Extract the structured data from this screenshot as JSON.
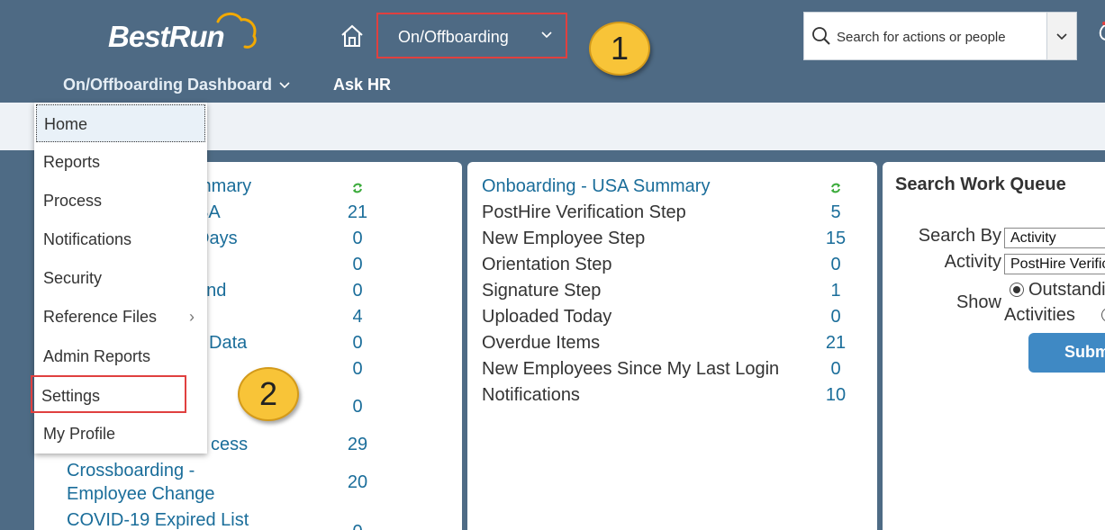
{
  "header": {
    "logo_text": "BestRun",
    "module_label": "On/Offboarding",
    "search_placeholder": "Search for actions or people",
    "nav": [
      "On/Offboarding Dashboard",
      "Ask HR"
    ],
    "accent": "#e0403f",
    "bg": "#4e6a84"
  },
  "callouts": [
    "1",
    "2"
  ],
  "menu": {
    "items": [
      "Home",
      "Reports",
      "Process",
      "Notifications",
      "Security",
      "Reference Files",
      "Admin Reports",
      "Settings",
      "My Profile"
    ],
    "active": "Home",
    "highlighted": "Settings"
  },
  "tile1": {
    "title_visible": "mmary",
    "rows": [
      {
        "label": "SA",
        "value": "21"
      },
      {
        "label": "Days",
        "value": "0"
      },
      {
        "label": "n",
        "value": "0"
      },
      {
        "label": "and",
        "value": "0"
      },
      {
        "label": "",
        "value": "4"
      },
      {
        "label": "Data",
        "value": "0"
      },
      {
        "label": "",
        "value": "0"
      },
      {
        "label": "",
        "value": "0"
      },
      {
        "label": "cess",
        "value": "29"
      },
      {
        "label": "Crossboarding -",
        "label2": "Employee Change",
        "value": "20"
      },
      {
        "label": "COVID-19 Expired List",
        "value": "0"
      }
    ]
  },
  "tile2": {
    "title": "Onboarding - USA Summary",
    "rows": [
      {
        "label": "PostHire Verification Step",
        "value": "5"
      },
      {
        "label": "New Employee Step",
        "value": "15"
      },
      {
        "label": "Orientation Step",
        "value": "0"
      },
      {
        "label": "Signature Step",
        "value": "1"
      },
      {
        "label": "Uploaded Today",
        "value": "0"
      },
      {
        "label": "Overdue Items",
        "value": "21"
      },
      {
        "label": "New Employees Since My Last Login",
        "value": "0"
      },
      {
        "label": "Notifications",
        "value": "10"
      }
    ]
  },
  "tile3": {
    "title": "Search Work Queue",
    "search_by_label": "Search By",
    "search_by_value": "Activity",
    "activity_label": "Activity",
    "activity_value": "PostHire Verification",
    "show_label": "Show",
    "radio1": "Outstanding",
    "radio1_line2": "Activities",
    "submit": "Submit"
  }
}
